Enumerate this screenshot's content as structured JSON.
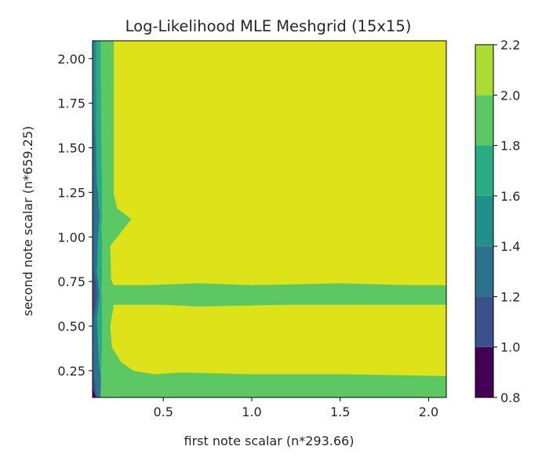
{
  "chart_data": {
    "type": "heatmap",
    "subtype": "filled-contour",
    "title": "Log-Likelihood MLE Meshgrid (15x15)",
    "xlabel": "first note scalar (n*293.66)",
    "ylabel": "second note scalar (n*659.25)",
    "xlim": [
      0.1,
      2.1
    ],
    "ylim": [
      0.1,
      2.1
    ],
    "xticks": [
      "0.5",
      "1.0",
      "1.5",
      "2.0"
    ],
    "yticks": [
      "0.25",
      "0.50",
      "0.75",
      "1.00",
      "1.25",
      "1.50",
      "1.75",
      "2.00"
    ],
    "grid": false,
    "colorbar": {
      "levels": [
        0.8,
        1.0,
        1.2,
        1.4,
        1.6,
        1.8,
        2.0,
        2.2
      ],
      "ticks": [
        "0.8",
        "1.0",
        "1.2",
        "1.4",
        "1.6",
        "1.8",
        "2.0",
        "2.2"
      ],
      "colors": [
        "#440154",
        "#3b518b",
        "#2c718e",
        "#21908d",
        "#27ad81",
        "#5cc863",
        "#aadc32",
        "#dde318"
      ],
      "colormap": "viridis"
    },
    "regions": [
      {
        "level_range": [
          2.0,
          2.2
        ],
        "description": "plateau",
        "x_range": [
          0.25,
          2.1
        ],
        "y_range": [
          0.2,
          2.1
        ]
      },
      {
        "level_range": [
          1.8,
          2.0
        ],
        "description": "low band",
        "x_range": [
          0.2,
          2.1
        ],
        "y_range": [
          0.1,
          0.25
        ]
      },
      {
        "level_range": [
          1.8,
          2.0
        ],
        "description": "mid band",
        "x_range": [
          0.2,
          2.1
        ],
        "y_range": [
          0.62,
          0.73
        ]
      },
      {
        "level_range": [
          0.8,
          1.8
        ],
        "description": "steep rise",
        "x_range": [
          0.1,
          0.25
        ],
        "y_range": [
          0.1,
          2.1
        ]
      }
    ]
  }
}
